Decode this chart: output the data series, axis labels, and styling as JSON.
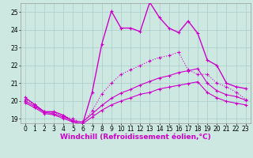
{
  "xlabel": "Windchill (Refroidissement éolien,°C)",
  "background_color": "#cce8e0",
  "grid_color": "#aacccc",
  "ylim": [
    18.75,
    25.5
  ],
  "xlim": [
    -0.5,
    23.5
  ],
  "yticks": [
    19,
    20,
    21,
    22,
    23,
    24,
    25
  ],
  "xticks": [
    0,
    1,
    2,
    3,
    4,
    5,
    6,
    7,
    8,
    9,
    10,
    11,
    12,
    13,
    14,
    15,
    16,
    17,
    18,
    19,
    20,
    21,
    22,
    23
  ],
  "lines": [
    {
      "x": [
        0,
        1,
        2,
        3,
        4,
        5,
        6,
        7,
        8,
        9,
        10,
        11,
        12,
        13,
        14,
        15,
        16,
        17,
        18,
        19,
        20,
        21,
        22,
        23
      ],
      "y": [
        20.2,
        19.8,
        19.4,
        19.4,
        19.2,
        18.85,
        18.7,
        20.5,
        23.2,
        25.05,
        24.1,
        24.1,
        23.9,
        25.55,
        24.7,
        24.1,
        23.85,
        24.5,
        23.8,
        22.3,
        22.0,
        21.0,
        20.8,
        20.7
      ],
      "color": "#cc00cc",
      "lw": 1.0,
      "dotted": false
    },
    {
      "x": [
        0,
        1,
        2,
        3,
        4,
        5,
        6,
        7,
        8,
        9,
        10,
        11,
        12,
        13,
        14,
        15,
        16,
        17,
        18,
        19,
        20,
        21,
        22,
        23
      ],
      "y": [
        20.1,
        19.75,
        19.4,
        19.35,
        19.15,
        19.0,
        18.75,
        19.45,
        20.4,
        21.0,
        21.5,
        21.75,
        22.0,
        22.25,
        22.45,
        22.55,
        22.75,
        21.75,
        21.5,
        21.5,
        21.0,
        20.8,
        20.5,
        20.1
      ],
      "color": "#cc00cc",
      "lw": 0.8,
      "dotted": true
    },
    {
      "x": [
        0,
        1,
        2,
        3,
        4,
        5,
        6,
        7,
        8,
        9,
        10,
        11,
        12,
        13,
        14,
        15,
        16,
        17,
        18,
        19,
        20,
        21,
        22,
        23
      ],
      "y": [
        20.0,
        19.7,
        19.38,
        19.28,
        19.1,
        18.9,
        18.82,
        19.28,
        19.75,
        20.15,
        20.45,
        20.65,
        20.9,
        21.1,
        21.3,
        21.42,
        21.6,
        21.7,
        21.82,
        21.0,
        20.58,
        20.35,
        20.25,
        20.05
      ],
      "color": "#cc00cc",
      "lw": 0.8,
      "dotted": false
    },
    {
      "x": [
        0,
        1,
        2,
        3,
        4,
        5,
        6,
        7,
        8,
        9,
        10,
        11,
        12,
        13,
        14,
        15,
        16,
        17,
        18,
        19,
        20,
        21,
        22,
        23
      ],
      "y": [
        19.9,
        19.62,
        19.3,
        19.22,
        19.02,
        18.82,
        18.72,
        19.1,
        19.48,
        19.78,
        20.0,
        20.18,
        20.38,
        20.48,
        20.68,
        20.78,
        20.88,
        20.98,
        21.08,
        20.48,
        20.18,
        19.98,
        19.88,
        19.78
      ],
      "color": "#cc00cc",
      "lw": 0.8,
      "dotted": false
    }
  ],
  "xlabel_fontsize": 6.5,
  "tick_fontsize": 5.5
}
